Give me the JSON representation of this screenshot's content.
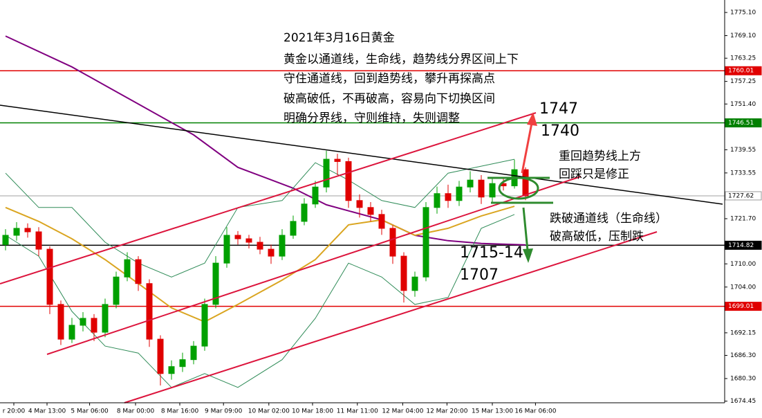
{
  "chart_data": {
    "type": "candlestick",
    "annotations": [
      "2021年3月16日黄金",
      "黄金以通道线，生命线，趋势线分界区间上下",
      "守住通道线，回到趋势线，攀升再探高点",
      "破高破低，不再破高，容易向下切换区间",
      "明确分界线，守则维持，失则调整",
      "1747",
      "1740",
      "重回趋势线上方",
      "回踩只是修正",
      "跌破通道线（生命线）",
      "破高破低，压制跌",
      "1715-14",
      "1707"
    ],
    "up_color": "#00a000",
    "down_color": "#e00000",
    "open": [
      1715.0,
      1717.4,
      1719.2,
      1718.3,
      1713.8,
      1699.5,
      1690.5,
      1694.1,
      1695.9,
      1692.3,
      1699.5,
      1706.6,
      1711.1,
      1704.9,
      1690.5,
      1681.6,
      1683.4,
      1685.2,
      1688.7,
      1699.5,
      1710.2,
      1717.4,
      1716.5,
      1715.6,
      1713.8,
      1712.0,
      1717.4,
      1721.0,
      1725.5,
      1729.9,
      1737.1,
      1736.5,
      1726.4,
      1724.6,
      1722.8,
      1719.2,
      1712.0,
      1703.1,
      1706.6,
      1724.6,
      1728.2,
      1726.4,
      1729.9,
      1731.7,
      1727.3,
      1730.8,
      1730.2,
      1734.4
    ],
    "high": [
      1719.0,
      1720.8,
      1720.5,
      1719.5,
      1714.5,
      1700.5,
      1696.0,
      1697.5,
      1697.0,
      1701.0,
      1708.0,
      1713.0,
      1712.0,
      1706.0,
      1691.5,
      1685.0,
      1687.0,
      1690.0,
      1701.0,
      1712.0,
      1719.5,
      1718.5,
      1717.5,
      1717.0,
      1715.0,
      1719.0,
      1722.5,
      1727.0,
      1731.5,
      1739.3,
      1738.5,
      1737.5,
      1728.0,
      1726.0,
      1724.0,
      1720.0,
      1713.0,
      1708.0,
      1726.0,
      1730.0,
      1730.5,
      1731.5,
      1734.0,
      1733.0,
      1732.0,
      1732.5,
      1737.0,
      1735.0
    ],
    "low": [
      1713.5,
      1716.0,
      1716.8,
      1712.0,
      1697.0,
      1689.0,
      1689.5,
      1692.5,
      1690.0,
      1691.0,
      1698.5,
      1705.5,
      1703.0,
      1688.5,
      1678.5,
      1680.0,
      1682.0,
      1684.0,
      1687.5,
      1698.5,
      1709.0,
      1715.0,
      1714.0,
      1712.5,
      1710.0,
      1711.0,
      1716.5,
      1720.0,
      1724.5,
      1728.5,
      1733.0,
      1724.5,
      1722.0,
      1721.0,
      1717.5,
      1710.0,
      1700.0,
      1701.5,
      1705.5,
      1723.0,
      1724.5,
      1725.0,
      1728.5,
      1725.5,
      1726.0,
      1729.0,
      1729.5,
      1726.5
    ],
    "close": [
      1717.4,
      1719.2,
      1718.3,
      1713.8,
      1699.5,
      1690.5,
      1694.1,
      1695.9,
      1692.3,
      1699.5,
      1706.6,
      1711.1,
      1704.9,
      1690.5,
      1681.6,
      1683.4,
      1685.2,
      1688.7,
      1699.5,
      1710.2,
      1717.4,
      1716.5,
      1715.6,
      1713.8,
      1712.0,
      1717.4,
      1721.0,
      1725.5,
      1729.9,
      1737.1,
      1736.5,
      1726.4,
      1724.6,
      1722.8,
      1719.2,
      1712.0,
      1703.1,
      1706.6,
      1724.6,
      1728.2,
      1726.4,
      1729.9,
      1731.7,
      1727.3,
      1730.8,
      1730.2,
      1734.4,
      1727.62
    ],
    "lines": [
      {
        "color": "#800080",
        "x": [
          0,
          6,
          12,
          17,
          21,
          26,
          29,
          34,
          37,
          40,
          43,
          47
        ],
        "values": [
          1769.0,
          1761.0,
          1751.4,
          1743.4,
          1735.0,
          1729.6,
          1725.3,
          1721.4,
          1717.4,
          1716.0,
          1715.3,
          1714.9
        ]
      },
      {
        "color": "#daa520",
        "x": [
          0,
          3,
          6,
          9,
          12,
          15,
          18,
          21,
          25,
          28,
          31,
          34,
          37,
          40,
          43,
          46
        ],
        "values": [
          1724.6,
          1721.0,
          1716.5,
          1711.1,
          1704.9,
          1698.6,
          1695.0,
          1699.5,
          1705.8,
          1711.1,
          1720.1,
          1721.4,
          1717.4,
          1719.2,
          1722.4,
          1724.9
        ]
      },
      {
        "color": "#2e8b57",
        "x": [
          0,
          3,
          6,
          9,
          12,
          15,
          18,
          21,
          25,
          28,
          31,
          34,
          37,
          40,
          43,
          46
        ],
        "values": [
          1733.5,
          1724.6,
          1724.6,
          1715.6,
          1710.2,
          1706.6,
          1710.2,
          1724.6,
          1726.4,
          1736.2,
          1731.7,
          1726.4,
          1724.6,
          1733.5,
          1735.3,
          1737.1
        ]
      },
      {
        "color": "#2e8b57",
        "x": [
          0,
          3,
          6,
          9,
          12,
          15,
          18,
          21,
          25,
          28,
          31,
          34,
          37,
          40,
          43,
          46
        ],
        "values": [
          1717.4,
          1712.0,
          1697.7,
          1688.7,
          1686.9,
          1678.0,
          1681.6,
          1678.0,
          1685.2,
          1695.9,
          1710.2,
          1706.6,
          1699.5,
          1701.3,
          1719.2,
          1722.8
        ]
      }
    ],
    "price_lines": [
      {
        "value": 1760.01,
        "color": "#e00000"
      },
      {
        "value": 1746.51,
        "color": "#008000"
      },
      {
        "value": 1727.62,
        "color": "#c0c0c0"
      },
      {
        "value": 1714.82,
        "color": "#000000"
      },
      {
        "value": 1699.01,
        "color": "#e00000"
      }
    ],
    "xlim": [
      -0.5,
      65
    ],
    "xticks": [
      {
        "value": 0.75,
        "label": "r 20:00"
      },
      {
        "value": 3.75,
        "label": "4 Mar 13:00"
      },
      {
        "value": 7.6,
        "label": "5 Mar 06:00"
      },
      {
        "value": 11.75,
        "label": "8 Mar 00:00"
      },
      {
        "value": 15.75,
        "label": "8 Mar 16:00"
      },
      {
        "value": 19.7,
        "label": "9 Mar 09:00"
      },
      {
        "value": 23.8,
        "label": "10 Mar 02:00"
      },
      {
        "value": 27.75,
        "label": "10 Mar 18:00"
      },
      {
        "value": 31.8,
        "label": "11 Mar 11:00"
      },
      {
        "value": 35.9,
        "label": "12 Mar 04:00"
      },
      {
        "value": 39.9,
        "label": "12 Mar 20:00"
      },
      {
        "value": 44.0,
        "label": "15 Mar 13:00"
      },
      {
        "value": 47.9,
        "label": "16 Mar 06:00"
      }
    ],
    "ylim": [
      1674.03,
      1778.33
    ],
    "yticks": [
      {
        "value": 1775.1,
        "label": "1775.10"
      },
      {
        "value": 1769.1,
        "label": "1769.10"
      },
      1763.25,
      1757.25,
      {
        "value": 1751.4,
        "label": "1751.40"
      },
      1739.55,
      1733.55,
      {
        "value": 1721.7,
        "label": "1721.70"
      },
      {
        "value": 1710,
        "label": "1710.00"
      },
      {
        "value": 1704,
        "label": "1704.00"
      },
      1692.15,
      {
        "value": 1686.3,
        "label": "1686.30"
      },
      {
        "value": 1680.3,
        "label": "1680.30"
      },
      1674.45
    ]
  }
}
